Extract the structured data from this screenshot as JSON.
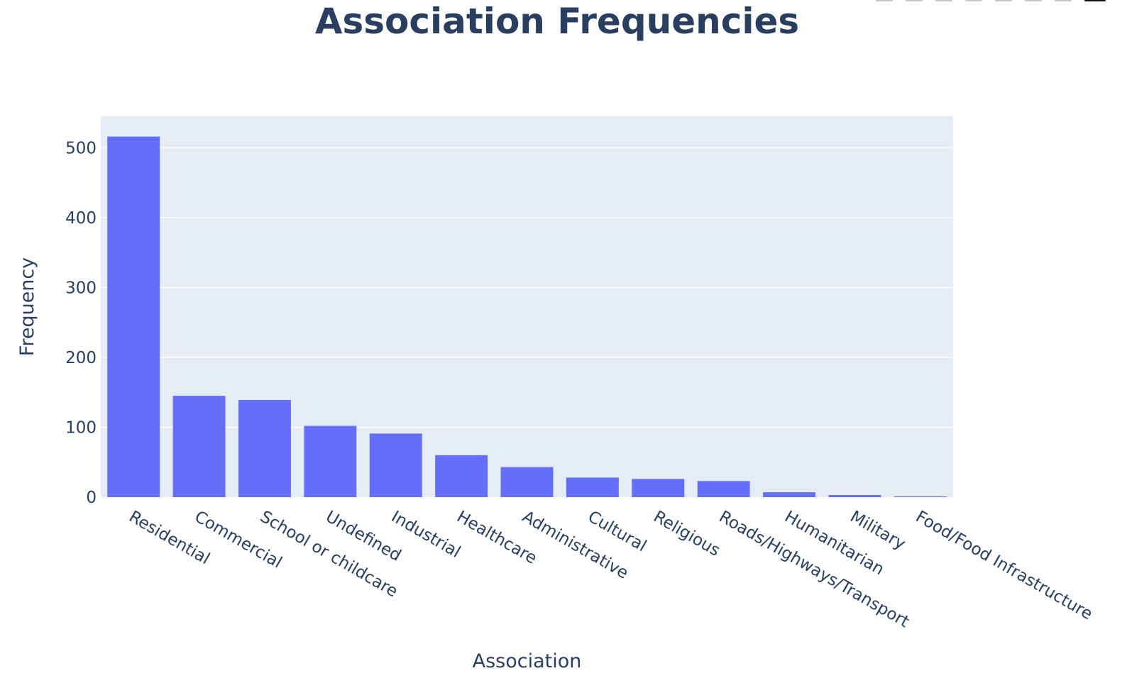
{
  "chart_data": {
    "type": "bar",
    "title": "Association Frequencies",
    "xlabel": "Association",
    "ylabel": "Frequency",
    "categories": [
      "Residential",
      "Commercial",
      "School or childcare",
      "Undefined",
      "Industrial",
      "Healthcare",
      "Administrative",
      "Cultural",
      "Religious",
      "Roads/Highways/Transport",
      "Humanitarian",
      "Military",
      "Food/Food Infrastructure"
    ],
    "values": [
      516,
      145,
      139,
      102,
      91,
      60,
      43,
      28,
      26,
      23,
      7,
      3,
      1
    ],
    "ylim": [
      0,
      545
    ],
    "yticks": [
      0,
      100,
      200,
      300,
      400,
      500
    ],
    "grid": true,
    "bar_color": "#636efa",
    "plot_bg": "#e5ecf6",
    "text_color": "#2a3f5f"
  }
}
